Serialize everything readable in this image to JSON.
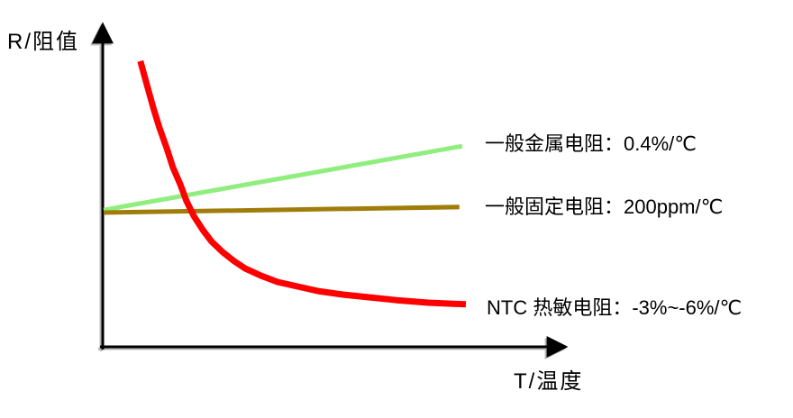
{
  "chart_data": {
    "type": "line",
    "title": "",
    "xlabel": "T/温度",
    "ylabel": "R/阻值",
    "axes": {
      "style": "L-shaped arrow axes",
      "ticks": "none",
      "grid": false,
      "color": "#000000"
    },
    "legend_position": "labels right of each line end",
    "series": [
      {
        "name": "一般金属电阻",
        "coefficient": "0.4%/℃",
        "label": "一般金属电阻：0.4%/℃",
        "color": "#90EE7E",
        "stroke_width": 5,
        "shape": "linear-increasing",
        "points_norm": [
          [
            0.002,
            0.422
          ],
          [
            0.773,
            0.619
          ]
        ]
      },
      {
        "name": "一般固定电阻",
        "coefficient": "200ppm/℃",
        "label": "一般固定电阻：200ppm/℃",
        "color": "#A07C0A",
        "stroke_width": 5,
        "shape": "near-flat",
        "points_norm": [
          [
            0.002,
            0.414
          ],
          [
            0.767,
            0.431
          ]
        ]
      },
      {
        "name": "NTC 热敏电阻",
        "coefficient": "-3%~-6%/℃",
        "label": "NTC 热敏电阻：-3%~-6%/℃",
        "color": "#FF0000",
        "stroke_width": 7,
        "shape": "exponential-decreasing",
        "points_norm": [
          [
            0.081,
            0.881
          ],
          [
            0.095,
            0.808
          ],
          [
            0.109,
            0.736
          ],
          [
            0.122,
            0.675
          ],
          [
            0.138,
            0.611
          ],
          [
            0.151,
            0.553
          ],
          [
            0.167,
            0.5
          ],
          [
            0.18,
            0.45
          ],
          [
            0.196,
            0.403
          ],
          [
            0.215,
            0.361
          ],
          [
            0.234,
            0.325
          ],
          [
            0.258,
            0.292
          ],
          [
            0.283,
            0.264
          ],
          [
            0.306,
            0.242
          ],
          [
            0.341,
            0.219
          ],
          [
            0.376,
            0.2
          ],
          [
            0.419,
            0.186
          ],
          [
            0.463,
            0.172
          ],
          [
            0.516,
            0.161
          ],
          [
            0.57,
            0.153
          ],
          [
            0.632,
            0.144
          ],
          [
            0.7,
            0.136
          ],
          [
            0.781,
            0.131
          ]
        ]
      }
    ]
  }
}
